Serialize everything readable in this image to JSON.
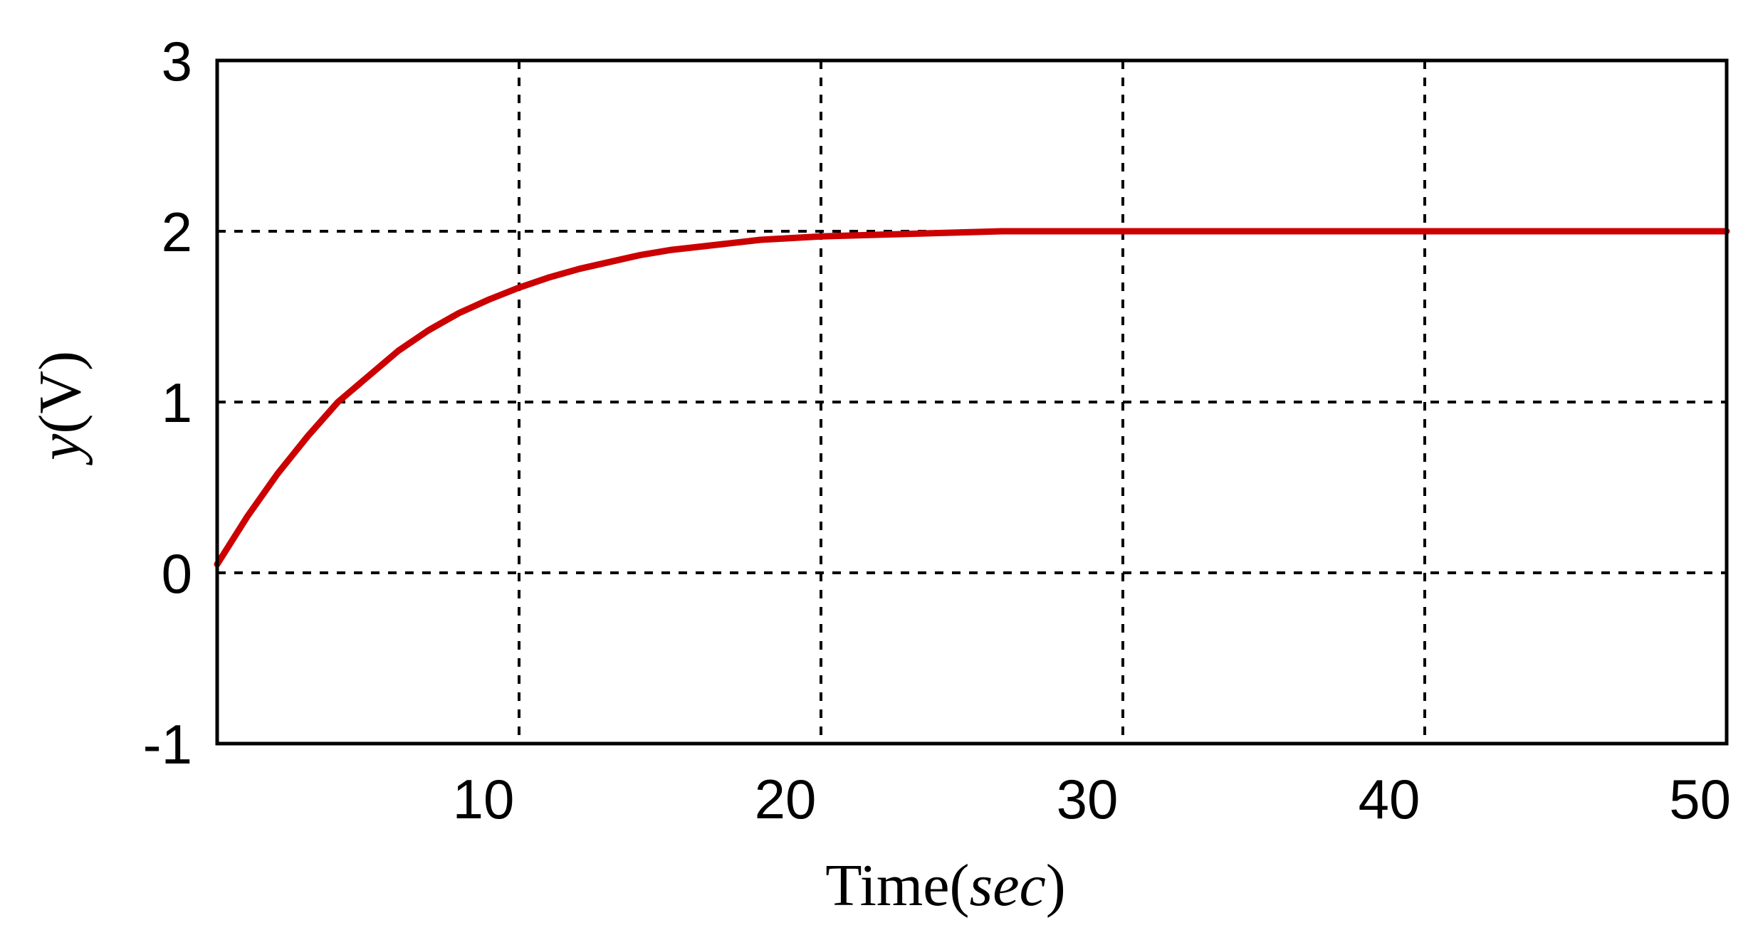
{
  "chart_data": {
    "type": "line",
    "xlabel": "Time(sec)",
    "xlabel_parts": {
      "main": "Time(",
      "unit": "sec",
      "close": ")"
    },
    "ylabel": "y(V)",
    "ylabel_parts": {
      "main": "y",
      "unit": "(V)"
    },
    "xlim": [
      0,
      50
    ],
    "ylim": [
      -1,
      3
    ],
    "x_ticks": [
      10,
      20,
      30,
      40,
      50
    ],
    "x_tick_labels": [
      "10",
      "20",
      "30",
      "40",
      "50"
    ],
    "y_ticks": [
      -1,
      0,
      1,
      2,
      3
    ],
    "y_tick_labels": [
      "-1",
      "0",
      "1",
      "2",
      "3"
    ],
    "grid": true,
    "grid_style": "dashed",
    "series": [
      {
        "color": "#cc0000",
        "x": [
          0,
          1,
          2,
          3,
          4,
          5,
          6,
          7,
          8,
          9,
          10,
          11,
          12,
          13,
          14,
          15,
          16,
          17,
          18,
          19,
          20,
          22,
          24,
          26,
          28,
          30,
          35,
          40,
          45,
          50
        ],
        "y": [
          0.05,
          0.33,
          0.58,
          0.8,
          1.0,
          1.15,
          1.3,
          1.42,
          1.52,
          1.6,
          1.67,
          1.73,
          1.78,
          1.82,
          1.86,
          1.89,
          1.91,
          1.93,
          1.95,
          1.96,
          1.97,
          1.98,
          1.99,
          2.0,
          2.0,
          2.0,
          2.0,
          2.0,
          2.0,
          2.0
        ]
      }
    ]
  }
}
